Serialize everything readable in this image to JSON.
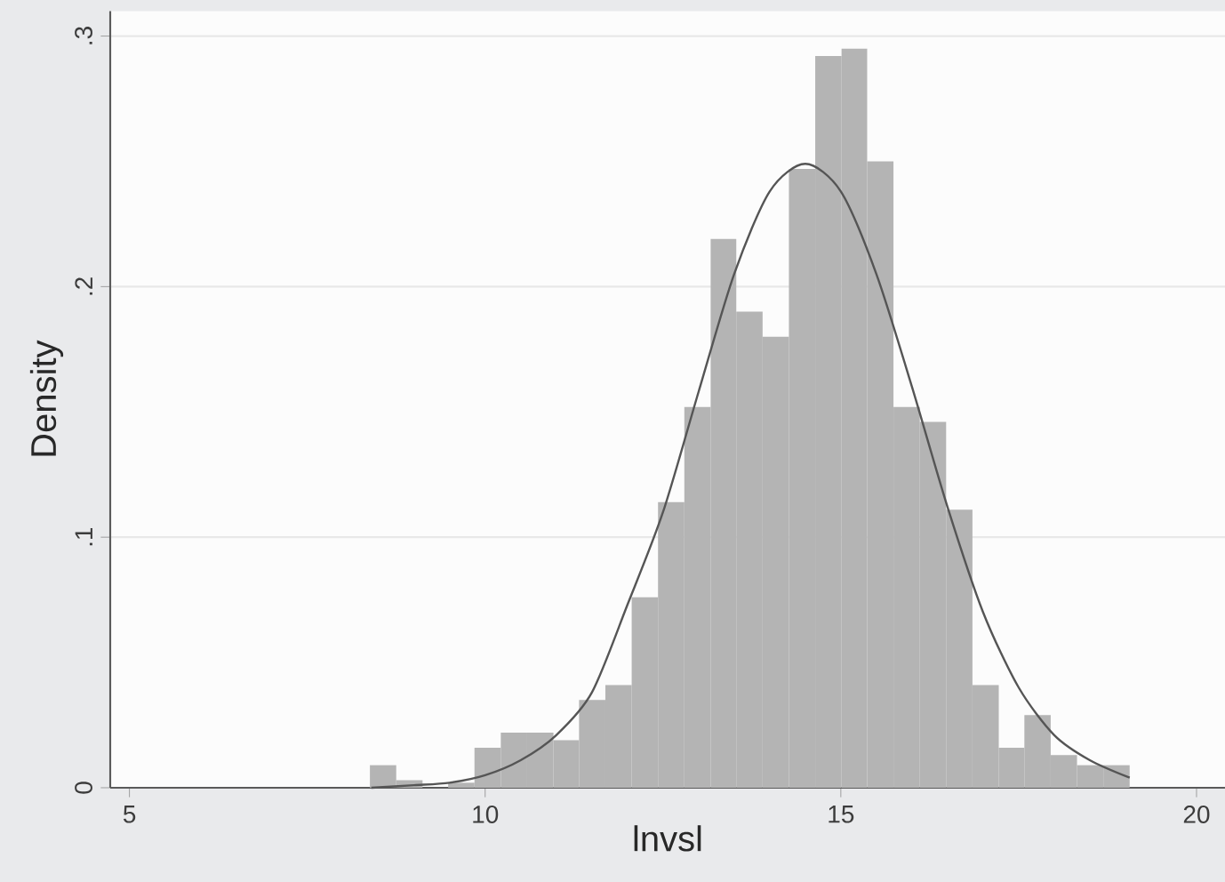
{
  "chart_data": {
    "type": "histogram",
    "xlabel": "lnvsl",
    "ylabel": "Density",
    "bins": [
      8.38,
      8.75,
      9.12,
      9.48,
      9.85,
      10.22,
      10.59,
      10.96,
      11.32,
      11.69,
      12.06,
      12.43,
      12.8,
      13.17,
      13.53,
      13.9,
      14.27,
      14.64,
      15.01,
      15.37,
      15.74,
      16.11,
      16.48,
      16.85,
      17.22,
      17.58,
      17.95,
      18.32,
      18.69,
      19.06
    ],
    "values": [
      0.009,
      0.003,
      0,
      0.002,
      0.016,
      0.022,
      0.022,
      0.019,
      0.035,
      0.041,
      0.076,
      0.114,
      0.152,
      0.219,
      0.19,
      0.18,
      0.247,
      0.292,
      0.295,
      0.25,
      0.152,
      0.146,
      0.111,
      0.041,
      0.016,
      0.029,
      0.013,
      0.009,
      0.009
    ],
    "color": "#b4b4b4",
    "series": [
      {
        "type": "line",
        "color": "#555555",
        "x": [
          8.4,
          9.0,
          9.5,
          10.0,
          10.5,
          11.0,
          11.5,
          12.0,
          12.5,
          13.0,
          13.5,
          14.0,
          14.5,
          15.0,
          15.5,
          16.0,
          16.5,
          17.0,
          17.5,
          18.0,
          18.5,
          19.06
        ],
        "values": [
          0.0,
          0.001,
          0.002,
          0.005,
          0.011,
          0.021,
          0.038,
          0.073,
          0.11,
          0.158,
          0.205,
          0.238,
          0.249,
          0.238,
          0.205,
          0.16,
          0.112,
          0.07,
          0.04,
          0.021,
          0.011,
          0.004
        ]
      }
    ],
    "xlim": [
      4.73,
      20.4
    ],
    "ylim": [
      0,
      0.31
    ],
    "xticks": [
      5,
      10,
      15,
      20
    ],
    "yticks": [
      0,
      {
        "value": 0.1,
        "label": ".1"
      },
      {
        "value": 0.2,
        "label": ".2"
      },
      {
        "value": 0.3,
        "label": ".3"
      }
    ],
    "grid": "y"
  }
}
